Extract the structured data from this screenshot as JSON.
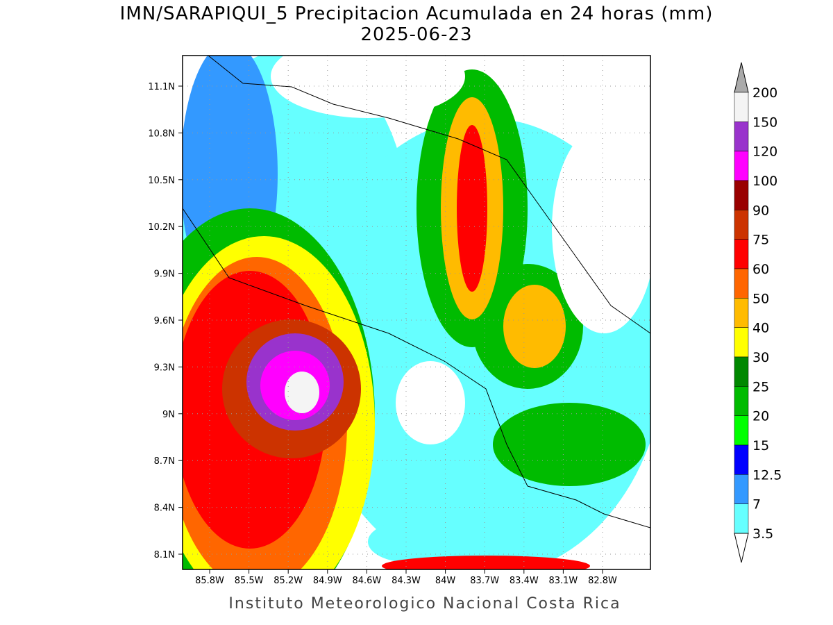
{
  "title": {
    "line1": "IMN/SARAPIQUI_5 Precipitacion Acumulada en 24 horas (mm)",
    "line2": "2025-06-23"
  },
  "map": {
    "lat_labels": [
      "11.1N",
      "10.8N",
      "10.5N",
      "10.2N",
      "9.9N",
      "9.6N",
      "9.3N",
      "9N",
      "8.7N",
      "8.4N",
      "8.1N"
    ],
    "lon_labels": [
      "85.8W",
      "85.5W",
      "85.2W",
      "84.9W",
      "84.6W",
      "84.3W",
      "84W",
      "83.7W",
      "83.4W",
      "83.1W",
      "82.8W"
    ]
  },
  "colorbar": {
    "levels": [
      200,
      150,
      120,
      100,
      90,
      75,
      60,
      50,
      40,
      30,
      25,
      20,
      15,
      12.5,
      7,
      3.5
    ],
    "colors": [
      "#f4f4f4",
      "#9933cc",
      "#ff00ff",
      "#990000",
      "#cc3300",
      "#ff0000",
      "#ff6600",
      "#ffbb00",
      "#ffff00",
      "#008800",
      "#00bb00",
      "#00ff00",
      "#0000ff",
      "#3399ff",
      "#66ffff"
    ],
    "over_color": "#aaaaaa",
    "under_color": "#ffffff"
  },
  "footer": "Instituto Meteorologico Nacional Costa Rica"
}
